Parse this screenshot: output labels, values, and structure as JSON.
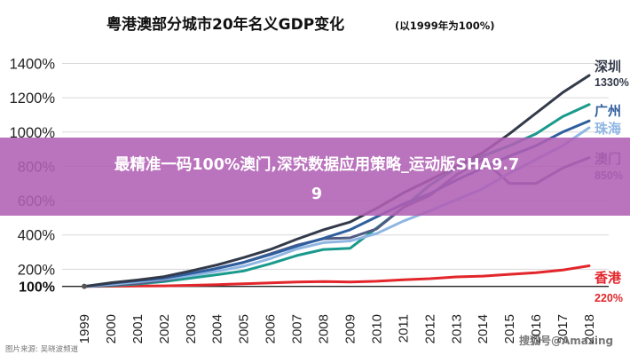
{
  "chart_data": {
    "type": "line",
    "title": "粤港澳部分城市20年名义GDP变化",
    "subtitle": "(以1999年为100%)",
    "xlabel": "",
    "ylabel": "",
    "x": [
      "1999",
      "2000",
      "2001",
      "2002",
      "2003",
      "2004",
      "2005",
      "2006",
      "2007",
      "2008",
      "2009",
      "2010",
      "2011",
      "2012",
      "2013",
      "2014",
      "2015",
      "2016",
      "2017",
      "2018"
    ],
    "yticks": [
      "100%",
      "200%",
      "400%",
      "600%",
      "800%",
      "1000%",
      "1200%",
      "1400%"
    ],
    "ylim": [
      0,
      1480
    ],
    "grid": true,
    "series": [
      {
        "name": "深圳",
        "end_label": "1330%",
        "color": "#333a4a",
        "values": [
          100,
          121,
          137,
          157,
          190,
          225,
          268,
          315,
          375,
          430,
          475,
          555,
          645,
          720,
          800,
          880,
          990,
          1110,
          1230,
          1330
        ]
      },
      {
        "name": "广州",
        "end_label": "",
        "color": "#2f5e9e",
        "values": [
          100,
          118,
          133,
          148,
          175,
          205,
          240,
          285,
          335,
          380,
          430,
          505,
          580,
          640,
          720,
          790,
          860,
          920,
          1000,
          1065
        ]
      },
      {
        "name": "珠海",
        "end_label": "",
        "color": "#8fb6e3",
        "values": [
          100,
          112,
          125,
          142,
          163,
          188,
          218,
          262,
          318,
          355,
          365,
          408,
          480,
          540,
          605,
          670,
          760,
          840,
          920,
          1025
        ]
      },
      {
        "name": "澳门",
        "end_label": "850%",
        "color": "#505a82",
        "values": [
          100,
          108,
          118,
          135,
          165,
          205,
          240,
          290,
          340,
          378,
          383,
          435,
          560,
          630,
          750,
          840,
          700,
          700,
          790,
          850
        ]
      },
      {
        "name": "",
        "end_label": "",
        "color": "#1a9a8c",
        "values": [
          100,
          105,
          114,
          128,
          148,
          168,
          190,
          232,
          280,
          315,
          322,
          440,
          560,
          690,
          790,
          860,
          920,
          990,
          1090,
          1160
        ]
      },
      {
        "name": "香港",
        "end_label": "220%",
        "color": "#e2262b",
        "values": [
          100,
          101,
          102,
          103,
          106,
          110,
          115,
          120,
          126,
          128,
          126,
          130,
          138,
          145,
          155,
          160,
          170,
          180,
          195,
          220
        ]
      }
    ]
  },
  "banner": {
    "line1": "最精准一码100%澳门,深究数据应用策略_运动版SHA9.7",
    "line2": "9"
  },
  "footer": {
    "left": "图片来源: 吴晓波频道",
    "right": "搜狐号@Amazing"
  }
}
